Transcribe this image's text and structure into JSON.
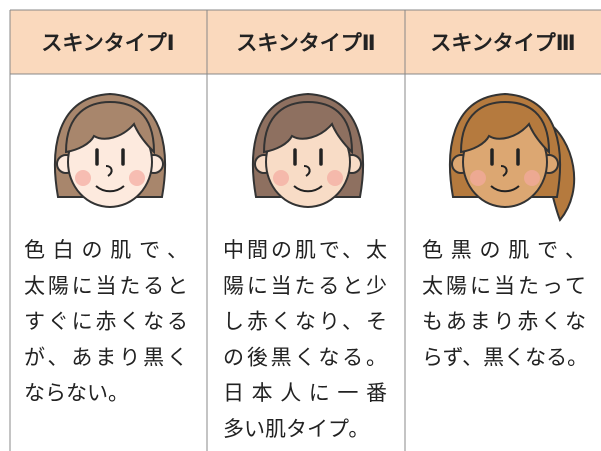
{
  "table": {
    "headers": [
      "スキンタイプⅠ",
      "スキンタイプⅡ",
      "スキンタイプⅢ"
    ],
    "descriptions": [
      [
        "色白の肌で、",
        "太陽に当たると",
        "すぐに赤くなる",
        "が、あまり黒く",
        "ならない。"
      ],
      [
        "中間の肌で、太",
        "陽に当たると少",
        "し赤くなり、そ",
        "の後黒くなる。",
        "日本人に一番",
        "多い肌タイプ。"
      ],
      [
        "色黒の肌で、",
        "太陽に当たって",
        "もあまり赤くな",
        "らず、黒くなる。"
      ]
    ]
  }
}
